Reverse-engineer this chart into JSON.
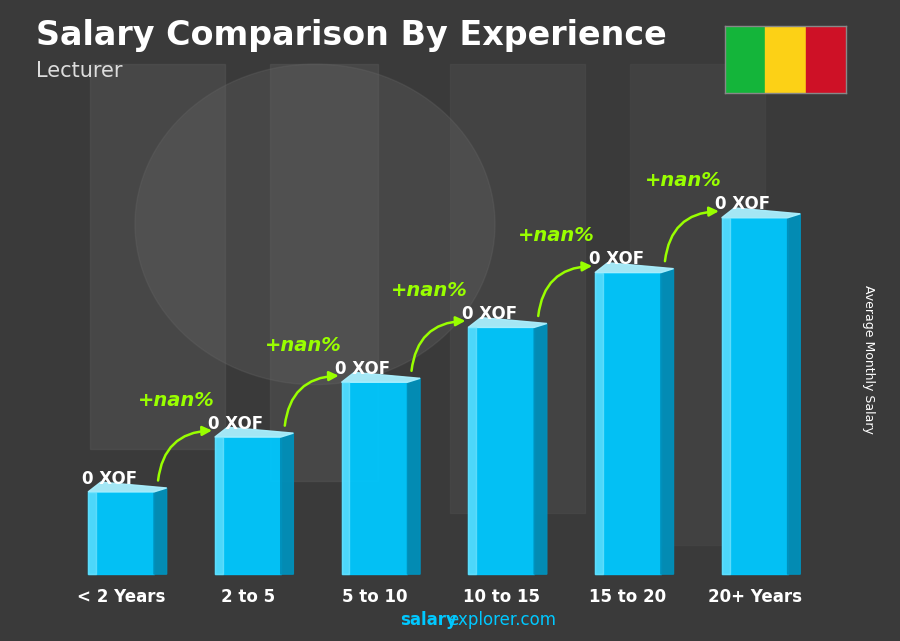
{
  "title": "Salary Comparison By Experience",
  "subtitle": "Lecturer",
  "ylabel": "Average Monthly Salary",
  "watermark_bold": "salary",
  "watermark_normal": "explorer.com",
  "categories": [
    "< 2 Years",
    "2 to 5",
    "5 to 10",
    "10 to 15",
    "15 to 20",
    "20+ Years"
  ],
  "values": [
    1.5,
    2.5,
    3.5,
    4.5,
    5.5,
    6.5
  ],
  "bar_labels": [
    "0 XOF",
    "0 XOF",
    "0 XOF",
    "0 XOF",
    "0 XOF",
    "0 XOF"
  ],
  "pct_labels": [
    "+nan%",
    "+nan%",
    "+nan%",
    "+nan%",
    "+nan%"
  ],
  "bar_color_main": "#00c8ff",
  "bar_color_light": "#80e8ff",
  "bar_color_side": "#0090bb",
  "bar_color_top": "#aaf0ff",
  "title_color": "#ffffff",
  "subtitle_color": "#dddddd",
  "label_color": "#ffffff",
  "pct_color": "#99ff00",
  "arrow_color": "#99ff00",
  "watermark_color": "#00c8ff",
  "bg_color": "#4a4a4a",
  "flag_colors": [
    "#14b53a",
    "#fcd116",
    "#ce1126"
  ],
  "title_fontsize": 24,
  "subtitle_fontsize": 15,
  "bar_label_fontsize": 12,
  "pct_fontsize": 14,
  "tick_fontsize": 12,
  "ylabel_fontsize": 9,
  "watermark_fontsize": 12
}
